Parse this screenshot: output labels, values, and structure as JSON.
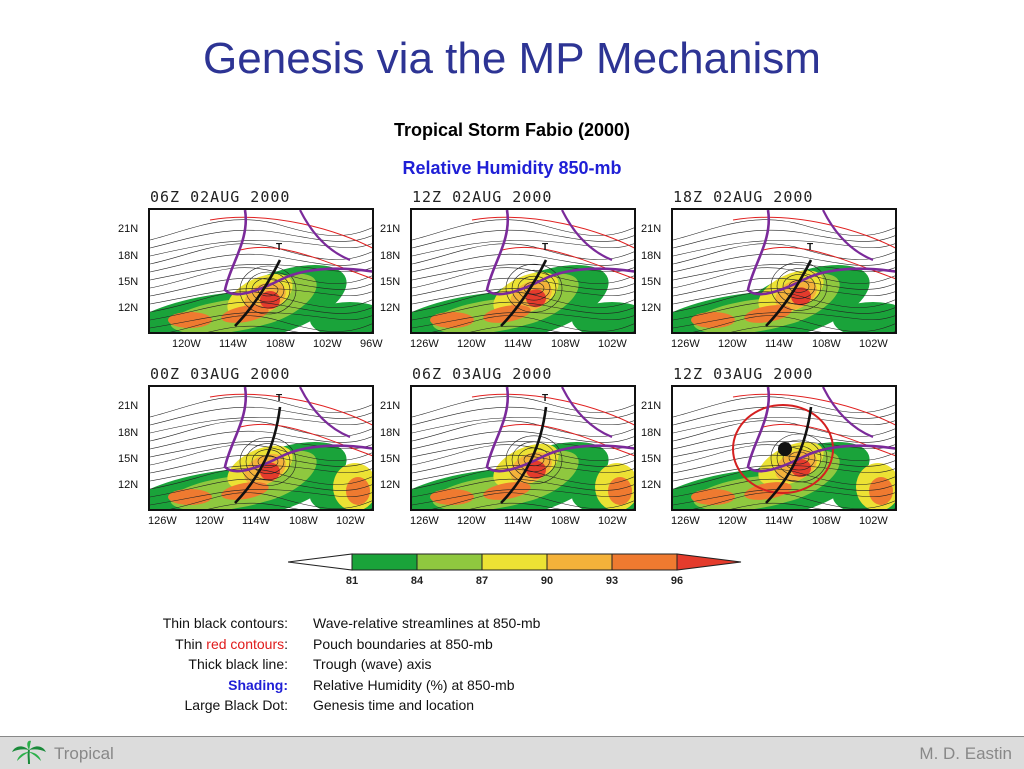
{
  "slide": {
    "title": "Genesis via the MP Mechanism",
    "subtitle": "Tropical Storm Fabio (2000)",
    "subtitle2": "Relative Humidity 850-mb"
  },
  "chart_data": {
    "type": "heatmap",
    "title": "Tropical Storm Fabio (2000)",
    "subtitle": "Relative Humidity 850-mb",
    "colorbar": {
      "ticks": [
        "81",
        "84",
        "87",
        "90",
        "93",
        "96"
      ],
      "values": [
        81,
        84,
        87,
        90,
        93,
        96
      ],
      "colors": [
        "#ffffff",
        "#1aa33a",
        "#8fc83f",
        "#ece234",
        "#f4b23a",
        "#ef7a30",
        "#e43b2c"
      ]
    },
    "panels": [
      {
        "time": "06Z 02AUG 2000",
        "lat_ticks": [
          "21N",
          "18N",
          "15N",
          "12N"
        ],
        "lon_ticks": [
          "120W",
          "114W",
          "108W",
          "102W",
          "96W"
        ],
        "marker": "T"
      },
      {
        "time": "12Z 02AUG 2000",
        "lat_ticks": [
          "21N",
          "18N",
          "15N",
          "12N"
        ],
        "lon_ticks": [
          "126W",
          "120W",
          "114W",
          "108W",
          "102W"
        ],
        "marker": "T"
      },
      {
        "time": "18Z 02AUG 2000",
        "lat_ticks": [
          "21N",
          "18N",
          "15N",
          "12N"
        ],
        "lon_ticks": [
          "126W",
          "120W",
          "114W",
          "108W",
          "102W"
        ],
        "marker": "T"
      },
      {
        "time": "00Z 03AUG 2000",
        "lat_ticks": [
          "21N",
          "18N",
          "15N",
          "12N"
        ],
        "lon_ticks": [
          "126W",
          "120W",
          "114W",
          "108W",
          "102W"
        ],
        "marker": "T"
      },
      {
        "time": "06Z 03AUG 2000",
        "lat_ticks": [
          "21N",
          "18N",
          "15N",
          "12N"
        ],
        "lon_ticks": [
          "126W",
          "120W",
          "114W",
          "108W",
          "102W"
        ],
        "marker": "T"
      },
      {
        "time": "12Z 03AUG 2000",
        "lat_ticks": [
          "21N",
          "18N",
          "15N",
          "12N"
        ],
        "lon_ticks": [
          "126W",
          "120W",
          "114W",
          "108W",
          "102W"
        ],
        "marker": ""
      }
    ]
  },
  "legend": {
    "rows": [
      {
        "key_pre": "Thin black contours:",
        "key_red": "",
        "key_post": "",
        "value": "Wave-relative streamlines at 850-mb"
      },
      {
        "key_pre": "Thin ",
        "key_red": "red contours",
        "key_post": ":",
        "value": "Pouch boundaries at 850-mb"
      },
      {
        "key_pre": "Thick black line:",
        "key_red": "",
        "key_post": "",
        "value": "Trough (wave) axis"
      },
      {
        "key_blue": "Shading:",
        "value": "Relative Humidity (%) at 850-mb"
      },
      {
        "key_pre": "Large Black Dot:",
        "key_red": "",
        "key_post": "",
        "value": "Genesis time and location"
      }
    ]
  },
  "footer": {
    "left": "Tropical",
    "right": "M. D. Eastin",
    "logo_icon": "palm-leaf-icon"
  }
}
